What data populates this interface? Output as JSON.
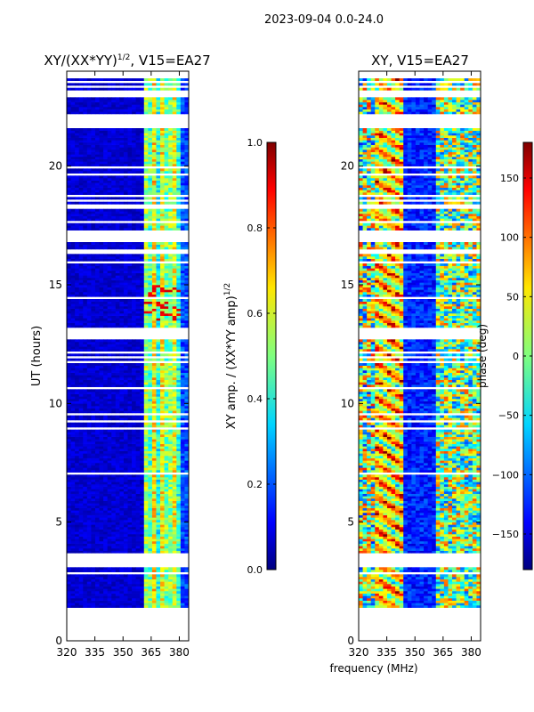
{
  "suptitle": "2023-09-04 0.0-24.0",
  "colors": {
    "cmap": [
      "#00007f",
      "#0000ff",
      "#007fff",
      "#00ffff",
      "#7fff7f",
      "#ffff00",
      "#ff7f00",
      "#ff0000",
      "#7f0000"
    ]
  },
  "chart_data": [
    {
      "type": "heatmap",
      "title": "XY/(XX*YY)",
      "title_exponent": "1/2",
      "title_suffix": ", V15=EA27",
      "xlabel": "",
      "ylabel": "UT (hours)",
      "xlim": [
        320,
        385
      ],
      "ylim": [
        0,
        24
      ],
      "xticks": [
        "320",
        "335",
        "350",
        "365",
        "380"
      ],
      "yticks": [
        "0",
        "5",
        "10",
        "15",
        "20"
      ],
      "data_range_y": [
        1.3,
        23.8
      ],
      "data_range_x": [
        320,
        385
      ],
      "colorbar": {
        "label": "XY amp. / (XX*YY amp)",
        "label_exponent": "1/2",
        "range": [
          0.0,
          1.0
        ],
        "ticks": [
          "0.0",
          "0.2",
          "0.4",
          "0.6",
          "0.8",
          "1.0"
        ]
      }
    },
    {
      "type": "heatmap",
      "title": "XY, V15=EA27",
      "xlabel": "frequency (MHz)",
      "ylabel": "",
      "xlim": [
        320,
        385
      ],
      "ylim": [
        0,
        24
      ],
      "xticks": [
        "320",
        "335",
        "350",
        "365",
        "380"
      ],
      "yticks": [
        "0",
        "5",
        "10",
        "15",
        "20"
      ],
      "data_range_y": [
        1.3,
        23.8
      ],
      "data_range_x": [
        320,
        385
      ],
      "colorbar": {
        "label": "phase (deg)",
        "range": [
          -180,
          180
        ],
        "ticks": [
          "−150",
          "−100",
          "−50",
          "0",
          "50",
          "100",
          "150"
        ]
      }
    }
  ]
}
